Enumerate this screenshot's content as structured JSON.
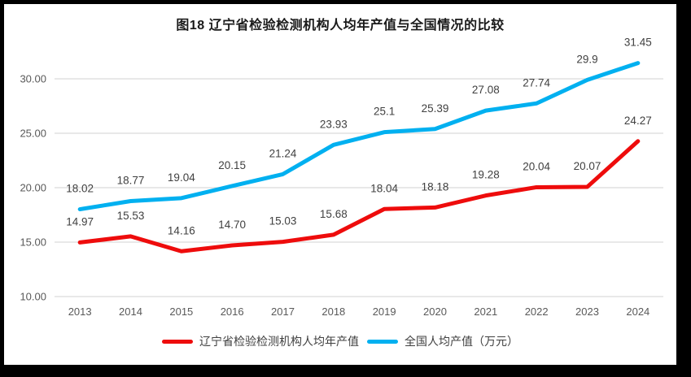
{
  "frame": {
    "background_color": "#000000",
    "chart_background_color": "#ffffff"
  },
  "colors": {
    "gridline": "#d9d9d9",
    "axis_text": "#595959",
    "data_label_text": "#404040",
    "title_text": "#1a1a1a"
  },
  "chart_data": {
    "type": "line",
    "title": "图18 辽宁省检验检测机构人均年产值与全国情况的比较",
    "categories": [
      "2013",
      "2014",
      "2015",
      "2016",
      "2017",
      "2018",
      "2019",
      "2020",
      "2021",
      "2022",
      "2023",
      "2024"
    ],
    "series": [
      {
        "name": "辽宁省检验检测机构人均年产值",
        "color": "#ee0c0c",
        "values": [
          14.97,
          15.53,
          14.16,
          14.7,
          15.03,
          15.68,
          18.04,
          18.18,
          19.28,
          20.04,
          20.07,
          24.27
        ],
        "labels": [
          "14.97",
          "15.53",
          "14.16",
          "14.70",
          "15.03",
          "15.68",
          "18.04",
          "18.18",
          "19.28",
          "20.04",
          "20.07",
          "24.27"
        ]
      },
      {
        "name": "全国人均产值（万元）",
        "color": "#00b0f0",
        "values": [
          18.02,
          18.77,
          19.04,
          20.15,
          21.24,
          23.93,
          25.1,
          25.39,
          27.08,
          27.74,
          29.9,
          31.45
        ],
        "labels": [
          "18.02",
          "18.77",
          "19.04",
          "20.15",
          "21.24",
          "23.93",
          "25.1",
          "25.39",
          "27.08",
          "27.74",
          "29.9",
          "31.45"
        ]
      }
    ],
    "y_axis": {
      "ticks": [
        "30.00",
        "25.00",
        "20.00",
        "15.00",
        "10.00"
      ],
      "tick_values": [
        30,
        25,
        20,
        15,
        10
      ],
      "min": 10,
      "max": 32.5
    },
    "grid": true,
    "legend_position": "bottom",
    "data_labels": true
  }
}
